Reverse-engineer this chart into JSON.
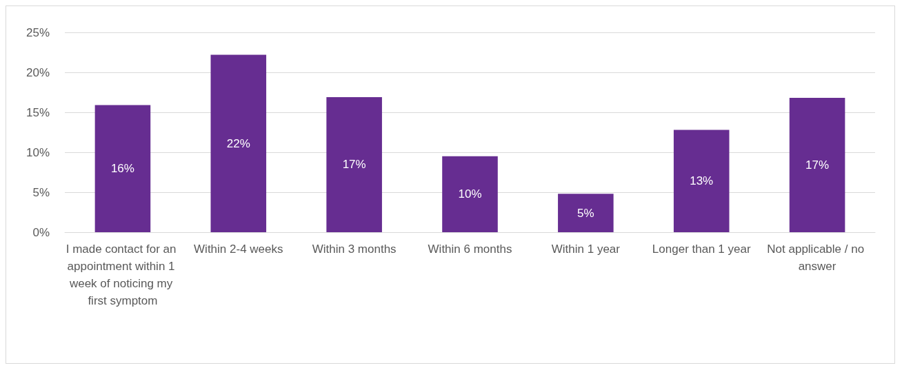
{
  "chart_data": {
    "type": "bar",
    "categories": [
      "I made contact for an appointment within 1 week of noticing my first symptom",
      "Within 2-4 weeks",
      "Within 3 months",
      "Within 6 months",
      "Within 1 year",
      "Longer than 1 year",
      "Not applicable / no answer"
    ],
    "values": [
      15.9,
      22.2,
      16.9,
      9.5,
      4.8,
      12.8,
      16.8
    ],
    "value_labels": [
      "16%",
      "22%",
      "17%",
      "10%",
      "5%",
      "13%",
      "17%"
    ],
    "color": "#662d91",
    "ylim": [
      0,
      25
    ],
    "yticks": [
      {
        "value": 0,
        "label": "0%"
      },
      {
        "value": 5,
        "label": "5%"
      },
      {
        "value": 10,
        "label": "10%"
      },
      {
        "value": 15,
        "label": "15%"
      },
      {
        "value": 20,
        "label": "20%"
      },
      {
        "value": 25,
        "label": "25%"
      }
    ],
    "grid": "y"
  }
}
